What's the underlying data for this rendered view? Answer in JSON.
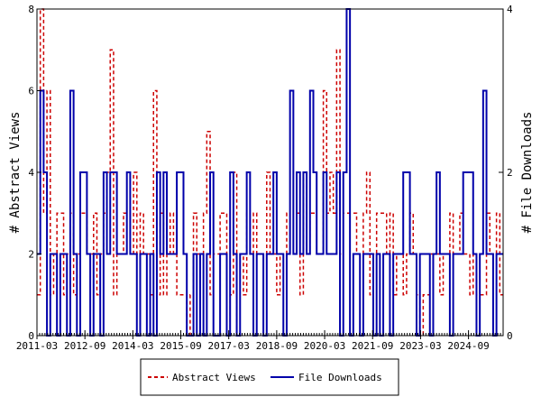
{
  "chart_data": {
    "type": "line",
    "x_start": "2011-03",
    "x_end": "2025-10",
    "xticks": [
      "2011-03",
      "2012-09",
      "2014-03",
      "2015-09",
      "2017-03",
      "2018-09",
      "2020-03",
      "2021-09",
      "2023-03",
      "2024-09"
    ],
    "ylabel_left": "# Abstract Views",
    "ylabel_right": "# File Downloads",
    "ylim_left": [
      0,
      8
    ],
    "ylim_right": [
      0,
      4
    ],
    "yticks_left": [
      "0",
      "2",
      "4",
      "6",
      "8"
    ],
    "yticks_right": [
      "0",
      "2",
      "4"
    ],
    "legend_position": "bottom-center",
    "series": [
      {
        "name": "Abstract Views",
        "axis": "left",
        "color": "#cc0000",
        "dash": "dashed",
        "values": [
          1,
          8,
          3,
          6,
          1,
          2,
          3,
          3,
          1,
          2,
          3,
          1,
          2,
          3,
          3,
          2,
          2,
          3,
          1,
          2,
          3,
          4,
          7,
          1,
          2,
          2,
          3,
          3,
          2,
          4,
          2,
          3,
          2,
          2,
          1,
          6,
          1,
          3,
          1,
          2,
          3,
          2,
          1,
          1,
          1,
          0,
          1,
          3,
          2,
          2,
          3,
          5,
          1,
          2,
          2,
          3,
          3,
          0,
          1,
          4,
          0,
          2,
          1,
          3,
          2,
          3,
          2,
          2,
          2,
          4,
          2,
          2,
          1,
          2,
          2,
          3,
          2,
          2,
          3,
          1,
          4,
          2,
          3,
          3,
          2,
          2,
          6,
          3,
          4,
          3,
          7,
          2,
          3,
          3,
          3,
          3,
          2,
          2,
          3,
          4,
          1,
          2,
          3,
          3,
          3,
          2,
          3,
          1,
          2,
          2,
          1,
          2,
          3,
          2,
          1,
          0,
          1,
          1,
          2,
          2,
          2,
          1,
          2,
          2,
          3,
          2,
          2,
          3,
          2,
          2,
          1,
          2,
          1,
          1,
          1,
          3,
          2,
          2,
          3,
          1
        ]
      },
      {
        "name": "File Downloads",
        "axis": "right",
        "color": "#0000aa",
        "dash": "solid",
        "values": [
          1,
          3,
          2,
          0,
          1,
          1,
          0,
          1,
          1,
          0,
          3,
          1,
          0,
          2,
          2,
          1,
          0,
          1,
          1,
          0,
          2,
          1,
          2,
          2,
          1,
          1,
          1,
          2,
          1,
          1,
          0,
          1,
          1,
          0,
          1,
          0,
          2,
          1,
          2,
          1,
          1,
          1,
          2,
          2,
          1,
          0,
          0,
          1,
          0,
          1,
          0,
          1,
          2,
          0,
          0,
          1,
          1,
          0,
          2,
          1,
          0,
          1,
          1,
          2,
          1,
          0,
          1,
          1,
          0,
          1,
          1,
          2,
          1,
          1,
          0,
          1,
          3,
          1,
          2,
          1,
          2,
          1,
          3,
          2,
          1,
          1,
          2,
          1,
          1,
          1,
          2,
          0,
          2,
          4,
          0,
          1,
          1,
          0,
          1,
          1,
          1,
          0,
          1,
          0,
          1,
          1,
          0,
          1,
          1,
          1,
          2,
          2,
          1,
          1,
          0,
          1,
          1,
          1,
          0,
          1,
          2,
          1,
          1,
          1,
          0,
          1,
          1,
          1,
          2,
          2,
          2,
          1,
          0,
          1,
          3,
          1,
          1,
          0,
          1,
          1
        ]
      }
    ]
  }
}
